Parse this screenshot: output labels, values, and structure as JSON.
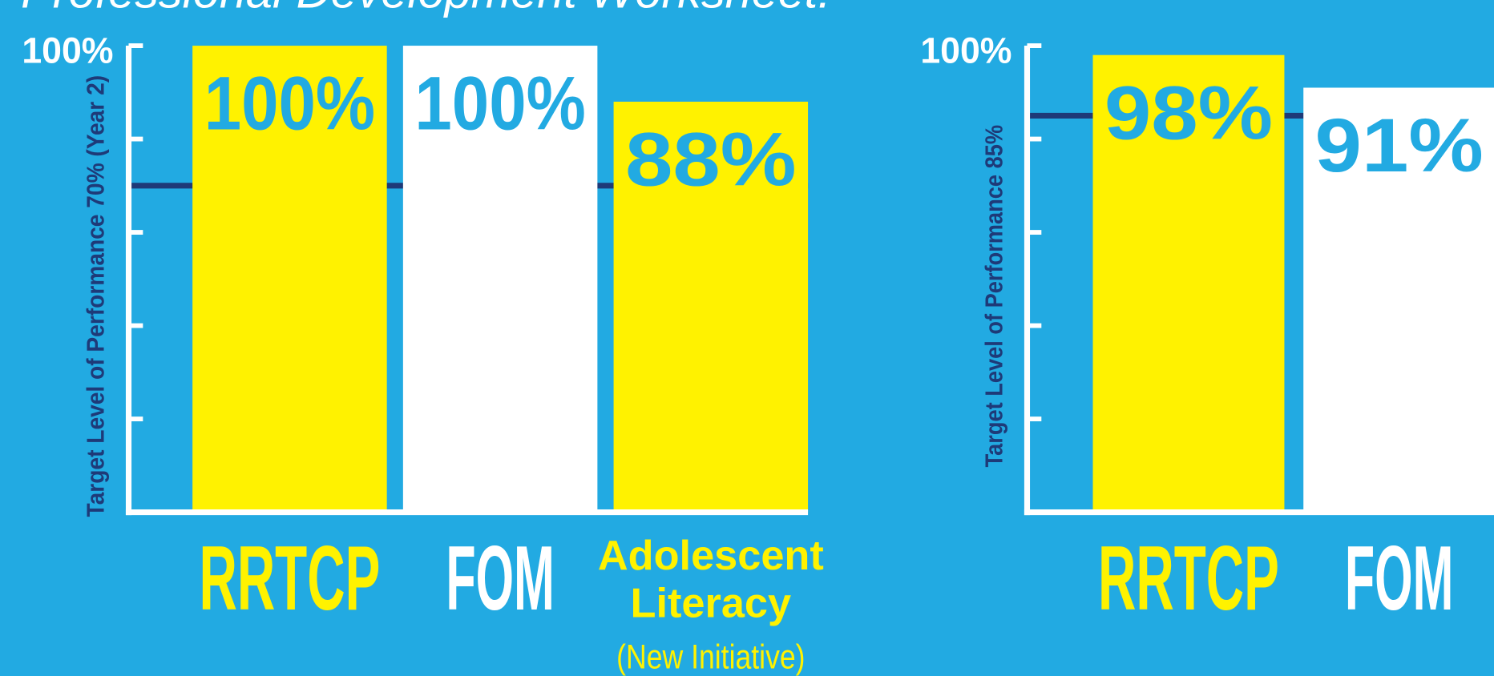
{
  "title": "Professional Development Worksheet:",
  "chart_data": [
    {
      "type": "bar",
      "categories": [
        "RRTCP",
        "FOM",
        "Adolescent Literacy"
      ],
      "category_notes": [
        null,
        null,
        "(New Initiative)"
      ],
      "values": [
        100,
        100,
        88
      ],
      "value_labels": [
        "100%",
        "100%",
        "88%"
      ],
      "colors": [
        "#fff200",
        "#ffffff",
        "#fff200"
      ],
      "ylim": [
        0,
        100
      ],
      "yticks": [
        {
          "value": 100,
          "label": "100%"
        }
      ],
      "minor_ticks": [
        20,
        40,
        60,
        80
      ],
      "ylabel": "Target Level of Performance 70% (Year 2)",
      "target": 70,
      "target_color": "#1e3a78"
    },
    {
      "type": "bar",
      "categories": [
        "RRTCP",
        "FOM"
      ],
      "values": [
        98,
        91
      ],
      "value_labels": [
        "98%",
        "91%"
      ],
      "colors": [
        "#fff200",
        "#ffffff"
      ],
      "ylim": [
        0,
        100
      ],
      "yticks": [
        {
          "value": 100,
          "label": "100%"
        }
      ],
      "minor_ticks": [
        20,
        40,
        60,
        80
      ],
      "ylabel": "Target Level of Performance 85%",
      "target": 85,
      "target_color": "#1e3a78"
    }
  ]
}
